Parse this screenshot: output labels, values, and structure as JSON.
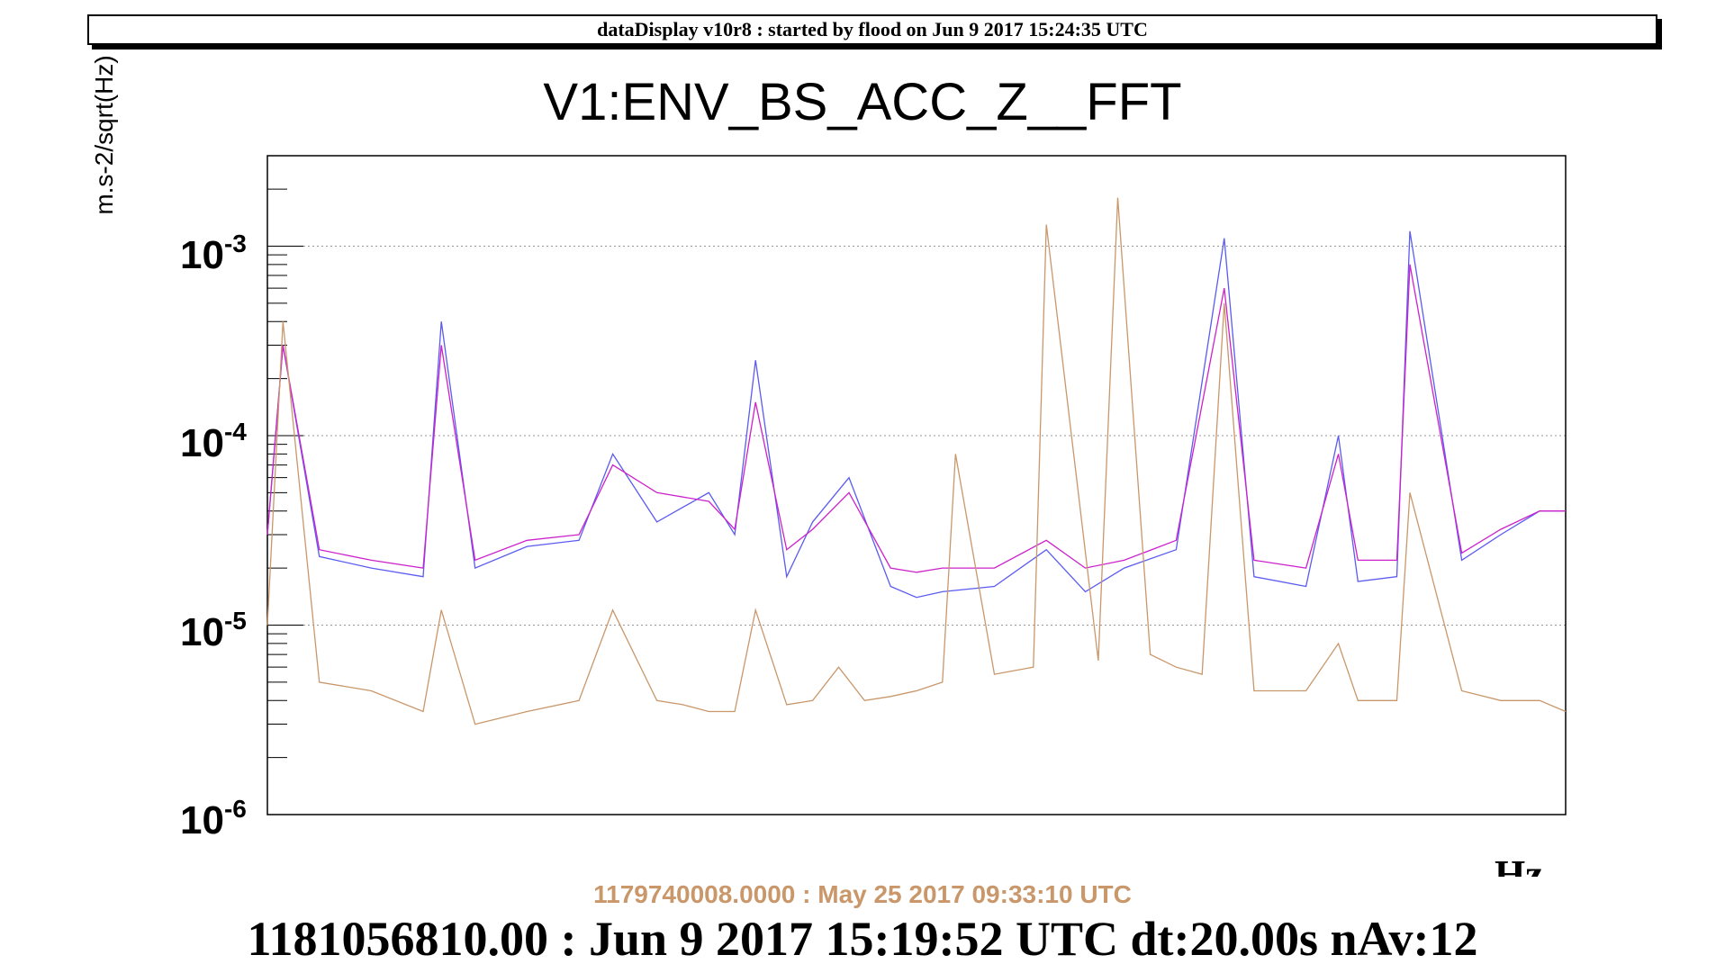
{
  "header": {
    "banner": "dataDisplay v10r8 : started by flood on Jun  9 2017 15:24:35 UTC"
  },
  "chart_data": {
    "type": "line",
    "title": "V1:ENV_BS_ACC_Z__FFT",
    "ylabel": "m.s-2/sqrt(Hz)",
    "xlabel": "Hz",
    "yscale": "log",
    "ylim": [
      1e-06,
      0.003
    ],
    "y_ticks": [
      {
        "base": "10",
        "exp": "-3",
        "value": 0.001
      },
      {
        "base": "10",
        "exp": "-4",
        "value": 0.0001
      },
      {
        "base": "10",
        "exp": "-5",
        "value": 1e-05
      },
      {
        "base": "10",
        "exp": "-6",
        "value": 1e-06
      }
    ],
    "grid": true,
    "x_range": [
      0,
      1
    ],
    "series": [
      {
        "color": "#5b5bf0",
        "x": [
          0.0,
          0.012,
          0.04,
          0.08,
          0.12,
          0.134,
          0.16,
          0.2,
          0.24,
          0.266,
          0.3,
          0.3,
          0.34,
          0.36,
          0.376,
          0.4,
          0.42,
          0.448,
          0.48,
          0.5,
          0.52,
          0.56,
          0.6,
          0.63,
          0.66,
          0.7,
          0.737,
          0.76,
          0.8,
          0.825,
          0.84,
          0.87,
          0.88,
          0.92,
          0.95,
          0.98,
          1.0
        ],
        "y": [
          3e-05,
          0.0003,
          2.3e-05,
          2e-05,
          1.8e-05,
          0.0004,
          2e-05,
          2.6e-05,
          2.8e-05,
          8e-05,
          3.5e-05,
          3.5e-05,
          5e-05,
          3e-05,
          0.00025,
          1.8e-05,
          3.5e-05,
          6e-05,
          1.6e-05,
          1.4e-05,
          1.5e-05,
          1.6e-05,
          2.5e-05,
          1.5e-05,
          2e-05,
          2.5e-05,
          0.0011,
          1.8e-05,
          1.6e-05,
          0.0001,
          1.7e-05,
          1.8e-05,
          0.0012,
          2.2e-05,
          3e-05,
          4e-05,
          4e-05
        ]
      },
      {
        "color": "#cc22cc",
        "x": [
          0.0,
          0.012,
          0.04,
          0.08,
          0.12,
          0.134,
          0.16,
          0.2,
          0.24,
          0.266,
          0.3,
          0.3,
          0.34,
          0.36,
          0.376,
          0.4,
          0.42,
          0.448,
          0.48,
          0.5,
          0.52,
          0.56,
          0.6,
          0.63,
          0.66,
          0.7,
          0.737,
          0.76,
          0.8,
          0.825,
          0.84,
          0.87,
          0.88,
          0.92,
          0.95,
          0.98,
          1.0
        ],
        "y": [
          3e-05,
          0.0003,
          2.5e-05,
          2.2e-05,
          2e-05,
          0.0003,
          2.2e-05,
          2.8e-05,
          3e-05,
          7e-05,
          5e-05,
          5e-05,
          4.5e-05,
          3.2e-05,
          0.00015,
          2.5e-05,
          3.2e-05,
          5e-05,
          2e-05,
          1.9e-05,
          2e-05,
          2e-05,
          2.8e-05,
          2e-05,
          2.2e-05,
          2.8e-05,
          0.0006,
          2.2e-05,
          2e-05,
          8e-05,
          2.2e-05,
          2.2e-05,
          0.0008,
          2.4e-05,
          3.2e-05,
          4e-05,
          4e-05
        ]
      },
      {
        "color": "#c9976a",
        "x": [
          0.0,
          0.012,
          0.04,
          0.08,
          0.12,
          0.134,
          0.16,
          0.2,
          0.24,
          0.266,
          0.3,
          0.32,
          0.34,
          0.36,
          0.376,
          0.4,
          0.42,
          0.44,
          0.46,
          0.48,
          0.5,
          0.52,
          0.53,
          0.56,
          0.59,
          0.6,
          0.64,
          0.655,
          0.68,
          0.7,
          0.72,
          0.737,
          0.76,
          0.8,
          0.825,
          0.84,
          0.87,
          0.88,
          0.92,
          0.95,
          0.98,
          1.0
        ],
        "y": [
          1e-05,
          0.0004,
          5e-06,
          4.5e-06,
          3.5e-06,
          1.2e-05,
          3e-06,
          3.5e-06,
          4e-06,
          1.2e-05,
          4e-06,
          3.8e-06,
          3.5e-06,
          3.5e-06,
          1.2e-05,
          3.8e-06,
          4e-06,
          6e-06,
          4e-06,
          4.2e-06,
          4.5e-06,
          5e-06,
          8e-05,
          5.5e-06,
          6e-06,
          0.0013,
          6.5e-06,
          0.0018,
          7e-06,
          6e-06,
          5.5e-06,
          0.0005,
          4.5e-06,
          4.5e-06,
          8e-06,
          4e-06,
          4e-06,
          5e-05,
          4.5e-06,
          4e-06,
          4e-06,
          3.5e-06
        ]
      }
    ]
  },
  "footer": {
    "ref_time": "1179740008.0000 : May 25 2017 09:33:10 UTC",
    "cur_time": "1181056810.00 : Jun  9 2017 15:19:52 UTC dt:20.00s nAv:12"
  }
}
